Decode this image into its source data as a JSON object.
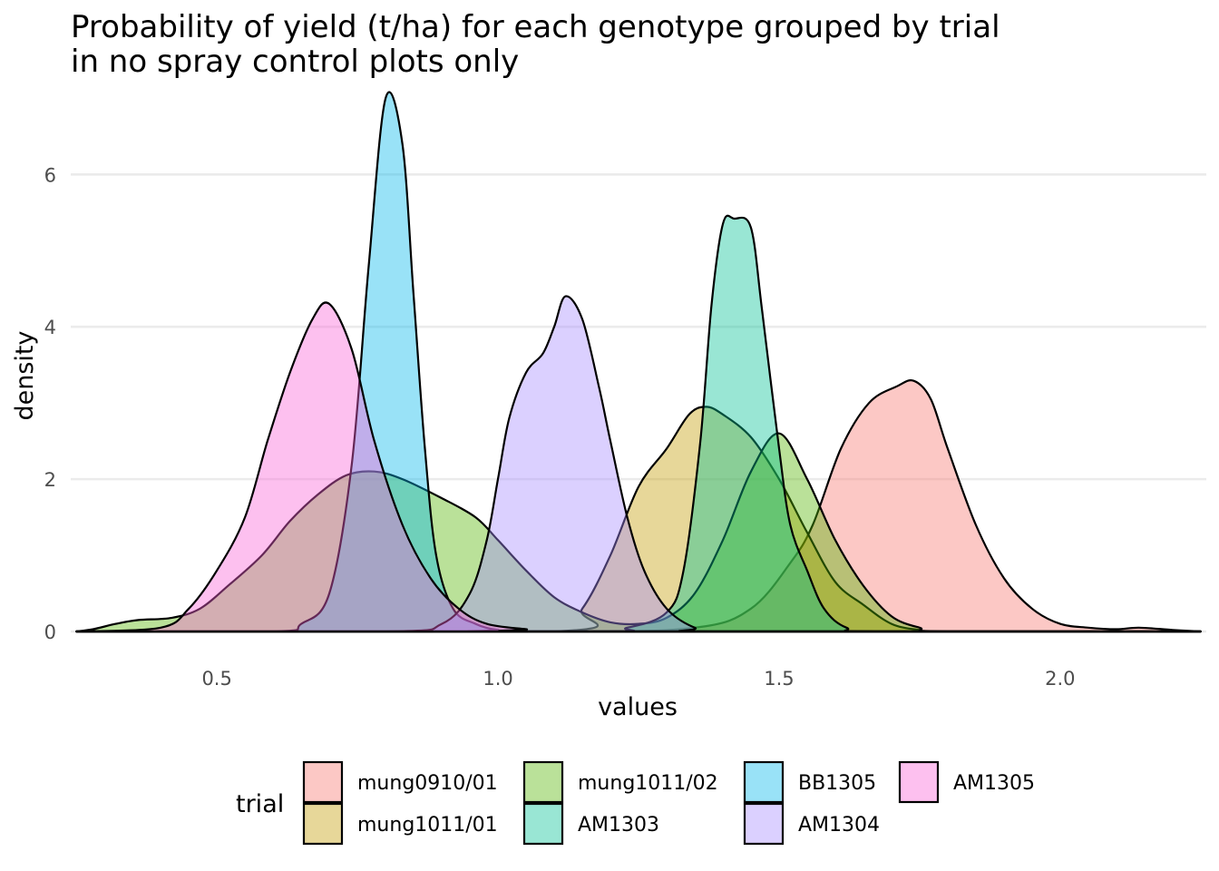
{
  "chart_data": {
    "type": "area",
    "subtype": "density",
    "title": "Probability of yield (t/ha) for each genotype grouped by trial\nin no spray control plots only",
    "xlabel": "values",
    "ylabel": "density",
    "xlim": [
      0.24,
      2.26
    ],
    "ylim": [
      0,
      7.1
    ],
    "xticks": [
      0.5,
      1.0,
      1.5,
      2.0
    ],
    "xtick_labels": [
      "0.5",
      "1.0",
      "1.5",
      "2.0"
    ],
    "yticks": [
      0,
      2,
      4,
      6
    ],
    "ytick_labels": [
      "0",
      "2",
      "4",
      "6"
    ],
    "grid": true,
    "legend": {
      "title": "trial",
      "position": "bottom"
    },
    "series": [
      {
        "name": "mung0910/01",
        "color": "#F8766D",
        "points": [
          [
            0.25,
            0
          ],
          [
            1.1,
            0
          ],
          [
            1.35,
            0.05
          ],
          [
            1.45,
            0.3
          ],
          [
            1.52,
            0.9
          ],
          [
            1.56,
            1.4
          ],
          [
            1.61,
            2.4
          ],
          [
            1.66,
            3.0
          ],
          [
            1.71,
            3.22
          ],
          [
            1.74,
            3.29
          ],
          [
            1.77,
            3.05
          ],
          [
            1.8,
            2.4
          ],
          [
            1.85,
            1.4
          ],
          [
            1.9,
            0.7
          ],
          [
            1.95,
            0.3
          ],
          [
            2.0,
            0.1
          ],
          [
            2.05,
            0.05
          ],
          [
            2.1,
            0.03
          ],
          [
            2.14,
            0.05
          ],
          [
            2.2,
            0.02
          ],
          [
            2.25,
            0
          ]
        ]
      },
      {
        "name": "mung1011/01",
        "color": "#C49A00",
        "points": [
          [
            0.25,
            0
          ],
          [
            1.1,
            0
          ],
          [
            1.15,
            0.3
          ],
          [
            1.2,
            1.0
          ],
          [
            1.25,
            1.9
          ],
          [
            1.3,
            2.4
          ],
          [
            1.34,
            2.85
          ],
          [
            1.37,
            2.95
          ],
          [
            1.4,
            2.85
          ],
          [
            1.45,
            2.55
          ],
          [
            1.5,
            2.0
          ],
          [
            1.55,
            1.3
          ],
          [
            1.6,
            0.65
          ],
          [
            1.65,
            0.35
          ],
          [
            1.7,
            0.1
          ],
          [
            1.75,
            0.02
          ],
          [
            1.8,
            0
          ],
          [
            2.25,
            0
          ]
        ]
      },
      {
        "name": "mung1011/02",
        "color": "#53B400",
        "points": [
          [
            0.25,
            0
          ],
          [
            0.28,
            0.03
          ],
          [
            0.32,
            0.1
          ],
          [
            0.36,
            0.15
          ],
          [
            0.42,
            0.18
          ],
          [
            0.47,
            0.3
          ],
          [
            0.52,
            0.6
          ],
          [
            0.58,
            1.0
          ],
          [
            0.63,
            1.45
          ],
          [
            0.68,
            1.8
          ],
          [
            0.73,
            2.05
          ],
          [
            0.78,
            2.1
          ],
          [
            0.83,
            2.0
          ],
          [
            0.9,
            1.75
          ],
          [
            0.96,
            1.5
          ],
          [
            1.0,
            1.2
          ],
          [
            1.05,
            0.8
          ],
          [
            1.1,
            0.45
          ],
          [
            1.15,
            0.25
          ],
          [
            1.2,
            0.12
          ],
          [
            1.25,
            0.1
          ],
          [
            1.3,
            0.18
          ],
          [
            1.35,
            0.5
          ],
          [
            1.4,
            1.2
          ],
          [
            1.45,
            2.1
          ],
          [
            1.5,
            2.6
          ],
          [
            1.55,
            2.0
          ],
          [
            1.6,
            1.2
          ],
          [
            1.65,
            0.6
          ],
          [
            1.7,
            0.2
          ],
          [
            1.75,
            0.05
          ],
          [
            1.8,
            0
          ],
          [
            2.25,
            0
          ]
        ]
      },
      {
        "name": "AM1303",
        "color": "#00C094",
        "points": [
          [
            0.25,
            0
          ],
          [
            1.15,
            0
          ],
          [
            1.23,
            0.05
          ],
          [
            1.3,
            0.25
          ],
          [
            1.33,
            0.8
          ],
          [
            1.36,
            2.5
          ],
          [
            1.38,
            4.3
          ],
          [
            1.4,
            5.35
          ],
          [
            1.42,
            5.42
          ],
          [
            1.45,
            5.3
          ],
          [
            1.47,
            4.2
          ],
          [
            1.5,
            2.4
          ],
          [
            1.52,
            1.4
          ],
          [
            1.55,
            0.8
          ],
          [
            1.58,
            0.3
          ],
          [
            1.62,
            0.05
          ],
          [
            1.68,
            0
          ],
          [
            2.25,
            0
          ]
        ]
      },
      {
        "name": "BB1305",
        "color": "#00B6EB",
        "points": [
          [
            0.25,
            0
          ],
          [
            0.6,
            0
          ],
          [
            0.65,
            0.1
          ],
          [
            0.7,
            0.5
          ],
          [
            0.74,
            2.2
          ],
          [
            0.77,
            4.8
          ],
          [
            0.8,
            7.0
          ],
          [
            0.83,
            6.4
          ],
          [
            0.85,
            4.4
          ],
          [
            0.87,
            2.4
          ],
          [
            0.89,
            1.0
          ],
          [
            0.92,
            0.3
          ],
          [
            0.96,
            0.1
          ],
          [
            1.0,
            0.02
          ],
          [
            1.05,
            0
          ],
          [
            2.25,
            0
          ]
        ]
      },
      {
        "name": "AM1304",
        "color": "#A58AFF",
        "points": [
          [
            0.25,
            0
          ],
          [
            0.8,
            0
          ],
          [
            0.9,
            0.1
          ],
          [
            0.95,
            0.5
          ],
          [
            0.98,
            1.2
          ],
          [
            1.0,
            2.0
          ],
          [
            1.02,
            2.8
          ],
          [
            1.05,
            3.4
          ],
          [
            1.08,
            3.65
          ],
          [
            1.1,
            4.0
          ],
          [
            1.12,
            4.4
          ],
          [
            1.15,
            4.1
          ],
          [
            1.18,
            3.2
          ],
          [
            1.2,
            2.5
          ],
          [
            1.23,
            1.5
          ],
          [
            1.26,
            0.8
          ],
          [
            1.3,
            0.3
          ],
          [
            1.35,
            0.05
          ],
          [
            1.4,
            0
          ],
          [
            2.25,
            0
          ]
        ]
      },
      {
        "name": "AM1305",
        "color": "#FB61D7",
        "points": [
          [
            0.25,
            0
          ],
          [
            0.4,
            0.05
          ],
          [
            0.45,
            0.3
          ],
          [
            0.5,
            0.8
          ],
          [
            0.55,
            1.5
          ],
          [
            0.59,
            2.5
          ],
          [
            0.63,
            3.4
          ],
          [
            0.67,
            4.1
          ],
          [
            0.7,
            4.3
          ],
          [
            0.74,
            3.7
          ],
          [
            0.78,
            2.5
          ],
          [
            0.83,
            1.4
          ],
          [
            0.88,
            0.7
          ],
          [
            0.93,
            0.3
          ],
          [
            0.98,
            0.1
          ],
          [
            1.05,
            0.03
          ],
          [
            1.1,
            0
          ],
          [
            2.25,
            0
          ]
        ]
      }
    ]
  }
}
